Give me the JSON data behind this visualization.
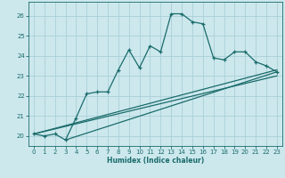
{
  "title": "",
  "xlabel": "Humidex (Indice chaleur)",
  "background_color": "#cce8ed",
  "grid_color": "#aacfd8",
  "line_color": "#1a6b6b",
  "xlim": [
    -0.5,
    23.5
  ],
  "ylim": [
    19.5,
    26.7
  ],
  "xticks": [
    0,
    1,
    2,
    3,
    4,
    5,
    6,
    7,
    8,
    9,
    10,
    11,
    12,
    13,
    14,
    15,
    16,
    17,
    18,
    19,
    20,
    21,
    22,
    23
  ],
  "yticks": [
    20,
    21,
    22,
    23,
    24,
    25,
    26
  ],
  "series": [
    [
      0,
      20.1
    ],
    [
      1,
      20.0
    ],
    [
      2,
      20.1
    ],
    [
      3,
      19.8
    ],
    [
      4,
      20.9
    ],
    [
      5,
      22.1
    ],
    [
      6,
      22.2
    ],
    [
      7,
      22.2
    ],
    [
      8,
      23.3
    ],
    [
      9,
      24.3
    ],
    [
      10,
      23.4
    ],
    [
      11,
      24.5
    ],
    [
      12,
      24.2
    ],
    [
      13,
      26.1
    ],
    [
      14,
      26.1
    ],
    [
      15,
      25.7
    ],
    [
      16,
      25.6
    ],
    [
      17,
      23.9
    ],
    [
      18,
      23.8
    ],
    [
      19,
      24.2
    ],
    [
      20,
      24.2
    ],
    [
      21,
      23.7
    ],
    [
      22,
      23.5
    ],
    [
      23,
      23.2
    ]
  ],
  "line1": [
    [
      0,
      20.1
    ],
    [
      23,
      23.3
    ]
  ],
  "line2": [
    [
      0,
      20.1
    ],
    [
      23,
      23.0
    ]
  ],
  "line3": [
    [
      3,
      19.8
    ],
    [
      23,
      23.2
    ]
  ]
}
